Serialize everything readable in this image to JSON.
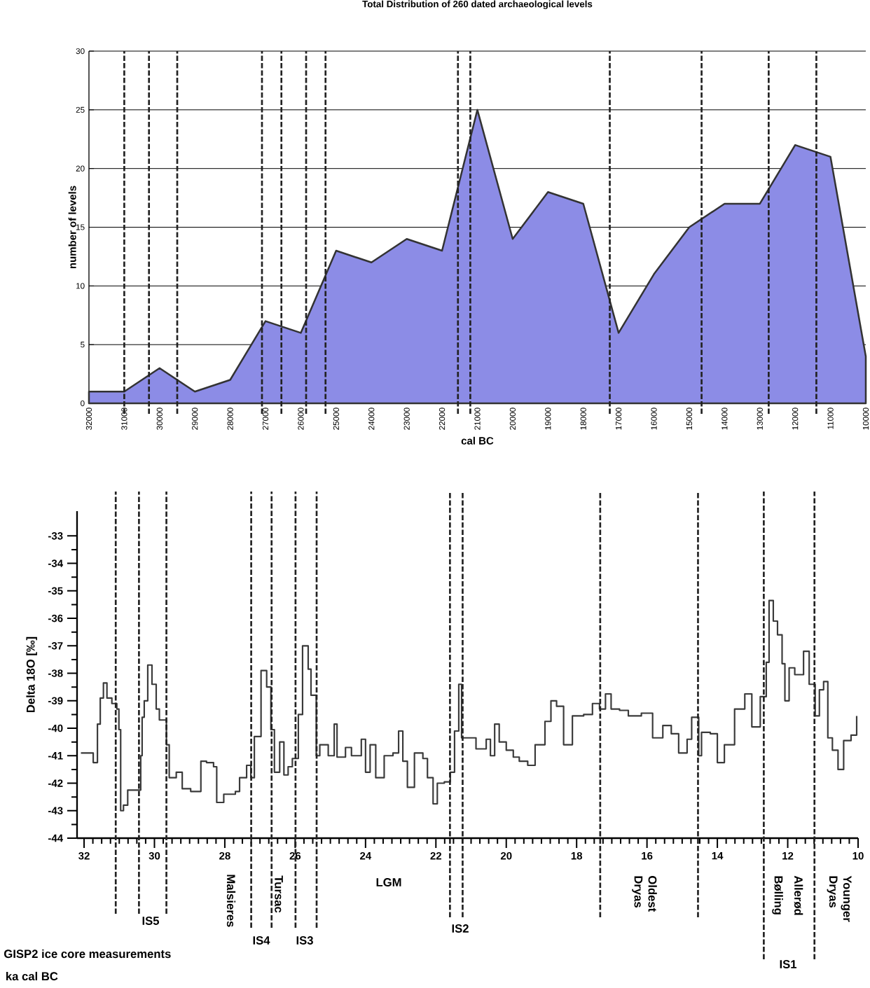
{
  "chart_data": [
    {
      "type": "area",
      "title": "Total Distribution of 260 dated archaeological levels",
      "xlabel": "cal BC",
      "ylabel": "number of levels",
      "x": [
        32000,
        31000,
        30000,
        29000,
        28000,
        27000,
        26000,
        25000,
        24000,
        23000,
        22000,
        21000,
        20000,
        19000,
        18000,
        17000,
        16000,
        15000,
        14000,
        13000,
        12000,
        11000,
        10000
      ],
      "values": [
        1,
        1,
        3,
        1,
        2,
        7,
        6,
        13,
        12,
        14,
        13,
        25,
        14,
        18,
        17,
        6,
        11,
        15,
        17,
        17,
        22,
        21,
        4
      ],
      "color": "#8c8ce6",
      "xlim": [
        32000,
        10000
      ],
      "xticks": [
        32000,
        31000,
        30000,
        29000,
        28000,
        27000,
        26000,
        25000,
        24000,
        23000,
        22000,
        21000,
        20000,
        19000,
        18000,
        17000,
        16000,
        15000,
        14000,
        13000,
        12000,
        11000,
        10000
      ],
      "ylim": [
        0,
        30
      ],
      "yticks": [
        0,
        5,
        10,
        15,
        20,
        25,
        30
      ],
      "grid": "y",
      "ref_lines": [
        {
          "axis": "x",
          "value": 31000,
          "line_style": "dashed",
          "color": "#222222"
        },
        {
          "axis": "x",
          "value": 30300,
          "line_style": "dashed",
          "color": "#222222"
        },
        {
          "axis": "x",
          "value": 29500,
          "line_style": "dashed",
          "color": "#222222"
        },
        {
          "axis": "x",
          "value": 27100,
          "line_style": "dashed",
          "color": "#222222"
        },
        {
          "axis": "x",
          "value": 26550,
          "line_style": "dashed",
          "color": "#222222"
        },
        {
          "axis": "x",
          "value": 25850,
          "line_style": "dashed",
          "color": "#222222"
        },
        {
          "axis": "x",
          "value": 25300,
          "line_style": "dashed",
          "color": "#222222"
        },
        {
          "axis": "x",
          "value": 21550,
          "line_style": "dashed",
          "color": "#222222"
        },
        {
          "axis": "x",
          "value": 21200,
          "line_style": "dashed",
          "color": "#222222"
        },
        {
          "axis": "x",
          "value": 17250,
          "line_style": "dashed",
          "color": "#222222"
        },
        {
          "axis": "x",
          "value": 14650,
          "line_style": "dashed",
          "color": "#222222"
        },
        {
          "axis": "x",
          "value": 12750,
          "line_style": "dashed",
          "color": "#222222"
        },
        {
          "axis": "x",
          "value": 11400,
          "line_style": "dashed",
          "color": "#222222"
        }
      ]
    },
    {
      "type": "step",
      "xlabel": "ka cal BC",
      "ylabel": "Delta 18O [‰]",
      "x": [
        32.09,
        31.74,
        31.62,
        31.54,
        31.45,
        31.35,
        31.21,
        31.07,
        31.01,
        30.96,
        30.88,
        30.76,
        30.39,
        30.35,
        30.29,
        30.19,
        30.07,
        29.95,
        29.86,
        29.66,
        29.58,
        29.38,
        29.21,
        28.97,
        28.68,
        28.52,
        28.32,
        28.23,
        28.03,
        27.7,
        27.58,
        27.38,
        27.26,
        27.16,
        26.97,
        26.81,
        26.69,
        26.59,
        26.44,
        26.32,
        26.2,
        26.08,
        25.91,
        25.79,
        25.63,
        25.55,
        25.4,
        25.3,
        25.06,
        24.89,
        24.81,
        24.57,
        24.4,
        24.12,
        24.0,
        23.87,
        23.71,
        23.47,
        23.22,
        23.06,
        22.94,
        22.81,
        22.61,
        22.37,
        22.24,
        22.08,
        21.96,
        21.76,
        21.59,
        21.47,
        21.35,
        21.27,
        20.86,
        20.57,
        20.45,
        20.33,
        20.2,
        20.0,
        19.8,
        19.63,
        19.39,
        19.18,
        18.9,
        18.73,
        18.57,
        18.37,
        18.12,
        17.8,
        17.55,
        17.35,
        17.18,
        17.02,
        16.78,
        16.53,
        16.16,
        15.84,
        15.55,
        15.31,
        15.1,
        14.86,
        14.73,
        14.53,
        14.45,
        14.2,
        14.0,
        13.8,
        13.51,
        13.22,
        13.02,
        12.78,
        12.61,
        12.53,
        12.41,
        12.29,
        12.16,
        12.08,
        11.96,
        11.8,
        11.55,
        11.39,
        11.22,
        11.1,
        10.98,
        10.86,
        10.73,
        10.57,
        10.41,
        10.2,
        10.04
      ],
      "values": [
        -40.9,
        -41.25,
        -39.85,
        -38.9,
        -38.35,
        -38.9,
        -39.1,
        -39.3,
        -40.05,
        -43.0,
        -42.8,
        -42.25,
        -41.0,
        -39.6,
        -39.0,
        -37.7,
        -38.4,
        -39.3,
        -39.7,
        -40.6,
        -41.8,
        -41.6,
        -42.2,
        -42.3,
        -41.2,
        -41.25,
        -41.4,
        -42.7,
        -42.4,
        -42.3,
        -41.8,
        -41.35,
        -41.8,
        -40.3,
        -37.9,
        -38.5,
        -40.05,
        -41.6,
        -40.5,
        -41.7,
        -41.4,
        -41.1,
        -39.5,
        -37.0,
        -37.85,
        -38.8,
        -41.0,
        -40.6,
        -41.0,
        -39.85,
        -41.05,
        -40.7,
        -41.0,
        -40.4,
        -41.6,
        -40.6,
        -41.8,
        -41.0,
        -40.9,
        -40.1,
        -41.2,
        -42.15,
        -40.9,
        -41.1,
        -41.8,
        -42.75,
        -42.0,
        -41.95,
        -41.6,
        -40.1,
        -38.4,
        -40.35,
        -40.75,
        -40.4,
        -41.0,
        -39.85,
        -40.5,
        -40.8,
        -41.05,
        -41.2,
        -41.35,
        -40.6,
        -39.75,
        -39.0,
        -39.2,
        -40.6,
        -39.55,
        -39.5,
        -39.1,
        -39.3,
        -38.75,
        -39.3,
        -39.35,
        -39.55,
        -39.45,
        -40.35,
        -39.9,
        -40.2,
        -40.9,
        -40.4,
        -39.6,
        -41.0,
        -40.15,
        -40.2,
        -41.25,
        -40.6,
        -39.3,
        -38.75,
        -39.95,
        -38.85,
        -37.6,
        -35.35,
        -36.1,
        -36.6,
        -37.65,
        -39.0,
        -37.8,
        -38.05,
        -37.2,
        -38.4,
        -39.55,
        -38.6,
        -38.3,
        -40.35,
        -40.8,
        -41.5,
        -40.45,
        -40.25,
        -39.55
      ],
      "color": "#3a3a3a",
      "xlim": [
        32.2,
        10
      ],
      "xticks": [
        32,
        30,
        28,
        26,
        24,
        22,
        20,
        18,
        16,
        14,
        12,
        10
      ],
      "ylim": [
        -44,
        -32.1
      ],
      "yticks": [
        -44,
        -43,
        -42,
        -41,
        -40,
        -39,
        -38,
        -37,
        -36,
        -35,
        -34,
        -33
      ],
      "ref_lines": [
        {
          "axis": "x",
          "value": 31.1,
          "line_style": "dashed",
          "color": "#222222"
        },
        {
          "axis": "x",
          "value": 30.44,
          "line_style": "dashed",
          "color": "#222222"
        },
        {
          "axis": "x",
          "value": 29.66,
          "line_style": "dashed",
          "color": "#222222"
        },
        {
          "axis": "x",
          "value": 27.25,
          "line_style": "dashed",
          "color": "#222222"
        },
        {
          "axis": "x",
          "value": 26.67,
          "line_style": "dashed",
          "color": "#222222"
        },
        {
          "axis": "x",
          "value": 25.99,
          "line_style": "dashed",
          "color": "#222222"
        },
        {
          "axis": "x",
          "value": 25.39,
          "line_style": "dashed",
          "color": "#222222"
        },
        {
          "axis": "x",
          "value": 21.6,
          "line_style": "dashed",
          "color": "#222222"
        },
        {
          "axis": "x",
          "value": 21.24,
          "line_style": "dashed",
          "color": "#222222"
        },
        {
          "axis": "x",
          "value": 17.33,
          "line_style": "dashed",
          "color": "#222222"
        },
        {
          "axis": "x",
          "value": 14.55,
          "line_style": "dashed",
          "color": "#222222"
        },
        {
          "axis": "x",
          "value": 12.68,
          "line_style": "dashed",
          "color": "#222222"
        },
        {
          "axis": "x",
          "value": 11.24,
          "line_style": "dashed",
          "color": "#222222"
        }
      ],
      "annotations": [
        "IS5",
        "Malsieres",
        "IS4",
        "Tursac",
        "IS3",
        "LGM",
        "IS2",
        "Oldest Dryas",
        "Bølling",
        "Allerød",
        "IS1",
        "Younger Dryas",
        "GISP2 ice core measurements"
      ]
    }
  ]
}
